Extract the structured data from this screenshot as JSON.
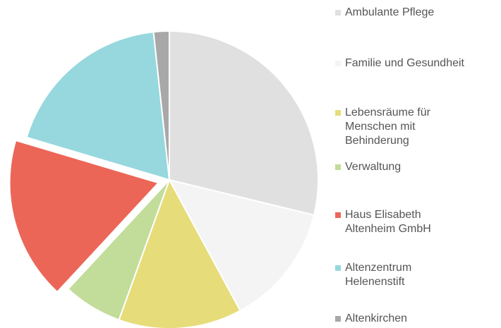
{
  "chart_data": {
    "type": "pie",
    "categories": [
      "Ambulante Pflege",
      "Familie und Gesundheit",
      "Lebensräume für Menschen mit Behinderung",
      "Verwaltung",
      "Haus Elisabeth Altenheim GmbH",
      "Altenzentrum Helenenstift",
      "Altenkirchen"
    ],
    "values": [
      28.8,
      13.3,
      13.4,
      6.4,
      17.7,
      18.7,
      1.7
    ],
    "colors": [
      "#e0e0e0",
      "#f4f4f4",
      "#e6dc7a",
      "#c2dc9a",
      "#ec6658",
      "#96d8de",
      "#a8a8a8"
    ],
    "exploded": [
      false,
      false,
      false,
      false,
      true,
      false,
      false
    ]
  }
}
